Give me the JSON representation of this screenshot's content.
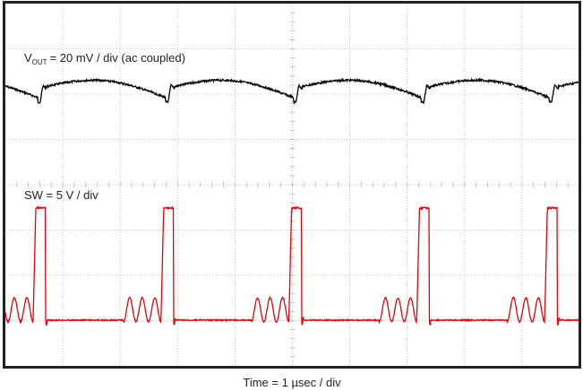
{
  "screen": {
    "vout_label": {
      "symbol": "V",
      "subscript": "OUT",
      "text": "= 20 mV / div (ac coupled)"
    },
    "sw_label": "SW = 5 V / div",
    "time_label": "Time = 1 µsec / div"
  }
}
